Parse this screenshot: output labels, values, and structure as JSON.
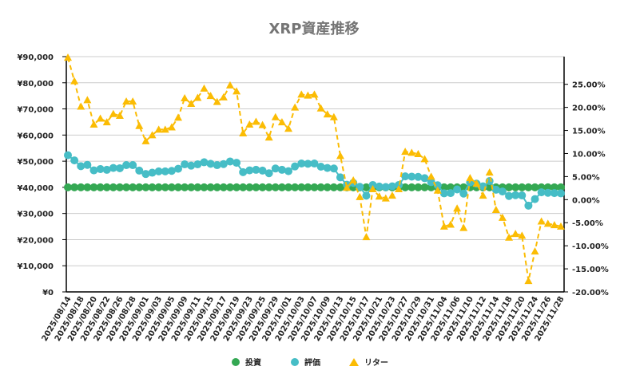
{
  "chart_data": {
    "type": "line",
    "title": "XRP資産推移",
    "xlabel": "",
    "ylabel": "",
    "ylim": [
      0,
      90000
    ],
    "y_ticks": [
      "¥0",
      "¥10,000",
      "¥20,000",
      "¥30,000",
      "¥40,000",
      "¥50,000",
      "¥60,000",
      "¥70,000",
      "¥80,000",
      "¥90,000"
    ],
    "ylim_right": [
      -20,
      31
    ],
    "y_right_ticks": [
      "-20.00%",
      "-15.00%",
      "-10.00%",
      "-5.00%",
      "0.00%",
      "5.00%",
      "10.00%",
      "15.00%",
      "20.00%",
      "25.00%"
    ],
    "grid": true,
    "legend_position": "bottom",
    "x": [
      "2025/08/14",
      "2025/08/15",
      "2025/08/18",
      "2025/08/19",
      "2025/08/20",
      "2025/08/21",
      "2025/08/22",
      "2025/08/25",
      "2025/08/26",
      "2025/08/27",
      "2025/08/28",
      "2025/08/29",
      "2025/09/01",
      "2025/09/02",
      "2025/09/03",
      "2025/09/04",
      "2025/09/05",
      "2025/09/08",
      "2025/09/09",
      "2025/09/10",
      "2025/09/11",
      "2025/09/12",
      "2025/09/15",
      "2025/09/16",
      "2025/09/17",
      "2025/09/18",
      "2025/09/19",
      "2025/09/22",
      "2025/09/23",
      "2025/09/24",
      "2025/09/25",
      "2025/09/26",
      "2025/09/29",
      "2025/09/30",
      "2025/10/01",
      "2025/10/02",
      "2025/10/03",
      "2025/10/06",
      "2025/10/07",
      "2025/10/08",
      "2025/10/09",
      "2025/10/10",
      "2025/10/13",
      "2025/10/14",
      "2025/10/15",
      "2025/10/16",
      "2025/10/17",
      "2025/10/20",
      "2025/10/21",
      "2025/10/22",
      "2025/10/23",
      "2025/10/24",
      "2025/10/27",
      "2025/10/28",
      "2025/10/29",
      "2025/10/30",
      "2025/10/31",
      "2025/11/03",
      "2025/11/04",
      "2025/11/05",
      "2025/11/06",
      "2025/11/07",
      "2025/11/10",
      "2025/11/11",
      "2025/11/12",
      "2025/11/13",
      "2025/11/14",
      "2025/11/17",
      "2025/11/18",
      "2025/11/19",
      "2025/11/20",
      "2025/11/21",
      "2025/11/24",
      "2025/11/25",
      "2025/11/26",
      "2025/11/27",
      "2025/11/28"
    ],
    "series": [
      {
        "name": "投資",
        "axis": "left",
        "color": "#34a853",
        "marker": "circle",
        "line": "solid",
        "values": [
          40000,
          40000,
          40000,
          40000,
          40000,
          40000,
          40000,
          40000,
          40000,
          40000,
          40000,
          40000,
          40000,
          40000,
          40000,
          40000,
          40000,
          40000,
          40000,
          40000,
          40000,
          40000,
          40000,
          40000,
          40000,
          40000,
          40000,
          40000,
          40000,
          40000,
          40000,
          40000,
          40000,
          40000,
          40000,
          40000,
          40000,
          40000,
          40000,
          40000,
          40000,
          40000,
          40000,
          40000,
          40000,
          40000,
          40000,
          40000,
          40000,
          40000,
          40000,
          40000,
          40000,
          40000,
          40000,
          40000,
          40000,
          40000,
          40000,
          40000,
          40000,
          40000,
          40000,
          40000,
          40000,
          40000,
          40000,
          40000,
          40000,
          40000,
          40000,
          40000,
          40000,
          40000,
          40000,
          40000,
          40000
        ]
      },
      {
        "name": "評価",
        "axis": "left",
        "color": "#46bdc6",
        "marker": "circle",
        "line": "solid",
        "values": [
          52300,
          50300,
          48100,
          48600,
          46500,
          47000,
          46700,
          47400,
          47300,
          48500,
          48500,
          46400,
          45100,
          45600,
          46100,
          46100,
          46300,
          47100,
          48800,
          48300,
          48800,
          49600,
          49000,
          48500,
          48900,
          49900,
          49400,
          45800,
          46500,
          46700,
          46400,
          45400,
          47200,
          46700,
          46200,
          48000,
          49100,
          49000,
          49100,
          47900,
          47400,
          47200,
          43800,
          41000,
          41700,
          40200,
          36800,
          40900,
          40300,
          40100,
          40400,
          40900,
          44200,
          44100,
          44000,
          43500,
          42000,
          40800,
          37700,
          37800,
          39200,
          37600,
          41900,
          41400,
          40400,
          42400,
          39100,
          38400,
          36700,
          37000,
          36900,
          33000,
          35500,
          38100,
          37900,
          37800,
          37700
        ]
      },
      {
        "name": "リター",
        "axis": "right",
        "color": "#fbbc04",
        "marker": "triangle",
        "line": "dashed",
        "values": [
          30.8,
          25.7,
          20.2,
          21.6,
          16.3,
          17.6,
          16.8,
          18.6,
          18.2,
          21.3,
          21.3,
          16.0,
          12.7,
          14.0,
          15.2,
          15.2,
          15.7,
          17.8,
          22.0,
          20.8,
          22.1,
          24.1,
          22.5,
          21.2,
          22.2,
          24.8,
          23.5,
          14.4,
          16.3,
          16.9,
          16.2,
          13.5,
          17.9,
          16.8,
          15.4,
          20.0,
          22.8,
          22.6,
          22.8,
          19.8,
          18.5,
          17.9,
          9.5,
          2.6,
          4.2,
          0.6,
          -8.1,
          2.3,
          0.7,
          0.3,
          0.9,
          2.3,
          10.4,
          10.2,
          9.9,
          8.8,
          5.0,
          2.0,
          -5.8,
          -5.4,
          -1.9,
          -6.1,
          4.7,
          3.5,
          0.9,
          5.9,
          -2.2,
          -3.9,
          -8.2,
          -7.4,
          -7.8,
          -17.6,
          -11.2,
          -4.7,
          -5.2,
          -5.5,
          -5.8
        ]
      }
    ]
  },
  "legend": {
    "items": [
      {
        "label": "投資",
        "color": "#34a853",
        "marker": "circle"
      },
      {
        "label": "評価",
        "color": "#46bdc6",
        "marker": "circle"
      },
      {
        "label": "リター",
        "color": "#fbbc04",
        "marker": "triangle"
      }
    ]
  }
}
